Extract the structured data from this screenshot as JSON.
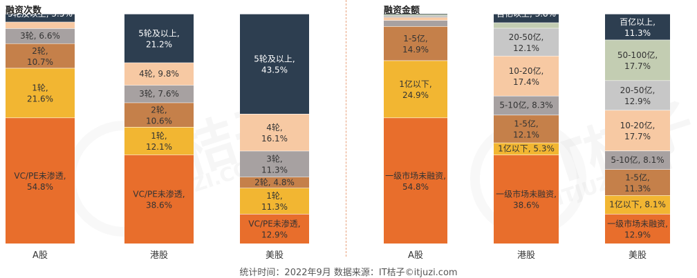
{
  "footer": "统计时间：2022年9月   数据来源：IT桔子©itjuzi.com",
  "watermark": "IT桔子",
  "watermark_sub": "ITJUZI.COM",
  "colors": {
    "orange": "#e86e2c",
    "yellow": "#f2b632",
    "brown": "#c5804a",
    "gray": "#a7a1a1",
    "peach": "#f7c9a3",
    "navy": "#2d3e50",
    "lightgray": "#c7c7c7",
    "sage": "#c3cdb2",
    "cream": "#f4ddc0"
  },
  "chart_data": [
    {
      "type": "bar",
      "stacked": true,
      "percent": true,
      "title": "融资次数",
      "categories": [
        "A股",
        "港股",
        "美股"
      ],
      "series": [
        {
          "name": "VC/PE未渗透",
          "color": "orange",
          "values": [
            54.8,
            38.6,
            12.9
          ]
        },
        {
          "name": "1轮",
          "color": "yellow",
          "values": [
            21.6,
            12.1,
            11.3
          ]
        },
        {
          "name": "2轮",
          "color": "brown",
          "values": [
            10.7,
            10.6,
            4.8
          ]
        },
        {
          "name": "3轮",
          "color": "gray",
          "values": [
            6.6,
            7.6,
            11.3
          ]
        },
        {
          "name": "4轮",
          "color": "peach",
          "values": [
            2.8,
            9.8,
            16.1
          ]
        },
        {
          "name": "5轮及以上",
          "color": "navy",
          "values": [
            3.5,
            21.2,
            43.5
          ]
        }
      ]
    },
    {
      "type": "bar",
      "stacked": true,
      "percent": true,
      "title": "融资金额",
      "categories": [
        "A股",
        "港股",
        "美股"
      ],
      "series": [
        {
          "name": "一级市场未融资",
          "color": "orange",
          "values": [
            54.8,
            38.6,
            12.9
          ]
        },
        {
          "name": "1亿以下",
          "color": "yellow",
          "values": [
            24.9,
            5.3,
            8.1
          ]
        },
        {
          "name": "1-5亿",
          "color": "brown",
          "values": [
            14.9,
            12.1,
            11.3
          ]
        },
        {
          "name": "5-10亿",
          "color": "gray",
          "values": [
            2.6,
            8.3,
            8.1
          ]
        },
        {
          "name": "10-20亿",
          "color": "peach",
          "values": [
            1.2,
            17.4,
            17.7
          ]
        },
        {
          "name": "20-50亿",
          "color": "lightgray",
          "values": [
            0.9,
            12.1,
            12.9
          ]
        },
        {
          "name": "50-100亿",
          "color": "sage",
          "values": [
            0.5,
            2.4,
            17.7
          ]
        },
        {
          "name": "百亿以上",
          "color": "navy",
          "values": [
            0.2,
            3.8,
            11.3
          ]
        }
      ]
    }
  ]
}
